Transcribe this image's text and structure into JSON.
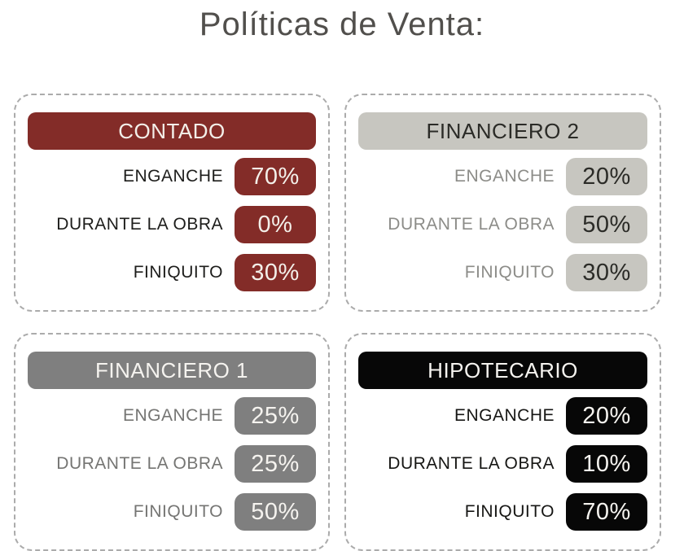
{
  "page": {
    "title": "Políticas de Venta:",
    "title_color": "#514f4c",
    "background": "#ffffff",
    "card_border_color": "#ababab"
  },
  "cards": [
    {
      "name": "contado",
      "title": "CONTADO",
      "theme": {
        "header_bg": "#832c28",
        "header_text": "#f3efe9",
        "label_color": "#1d1d1b",
        "value_bg": "#832c28",
        "value_text": "#f3efe9"
      },
      "rows": [
        {
          "label": "ENGANCHE",
          "value": "70%"
        },
        {
          "label": "DURANTE LA OBRA",
          "value": "0%"
        },
        {
          "label": "FINIQUITO",
          "value": "30%"
        }
      ]
    },
    {
      "name": "financiero-2",
      "title": "FINANCIERO 2",
      "theme": {
        "header_bg": "#c7c6c0",
        "header_text": "#2b2b27",
        "label_color": "#8c8c88",
        "value_bg": "#c7c6c0",
        "value_text": "#2b2b27"
      },
      "rows": [
        {
          "label": "ENGANCHE",
          "value": "20%"
        },
        {
          "label": "DURANTE LA OBRA",
          "value": "50%"
        },
        {
          "label": "FINIQUITO",
          "value": "30%"
        }
      ]
    },
    {
      "name": "financiero-1",
      "title": "FINANCIERO 1",
      "theme": {
        "header_bg": "#7f7f7f",
        "header_text": "#f5f3ef",
        "label_color": "#757573",
        "value_bg": "#7f7f7f",
        "value_text": "#f5f3ef"
      },
      "rows": [
        {
          "label": "ENGANCHE",
          "value": "25%"
        },
        {
          "label": "DURANTE LA OBRA",
          "value": "25%"
        },
        {
          "label": "FINIQUITO",
          "value": "50%"
        }
      ]
    },
    {
      "name": "hipotecario",
      "title": "HIPOTECARIO",
      "theme": {
        "header_bg": "#070707",
        "header_text": "#f5f3ef",
        "label_color": "#161614",
        "value_bg": "#070707",
        "value_text": "#f5f3ef"
      },
      "rows": [
        {
          "label": "ENGANCHE",
          "value": "20%"
        },
        {
          "label": "DURANTE LA OBRA",
          "value": "10%"
        },
        {
          "label": "FINIQUITO",
          "value": "70%"
        }
      ]
    }
  ]
}
